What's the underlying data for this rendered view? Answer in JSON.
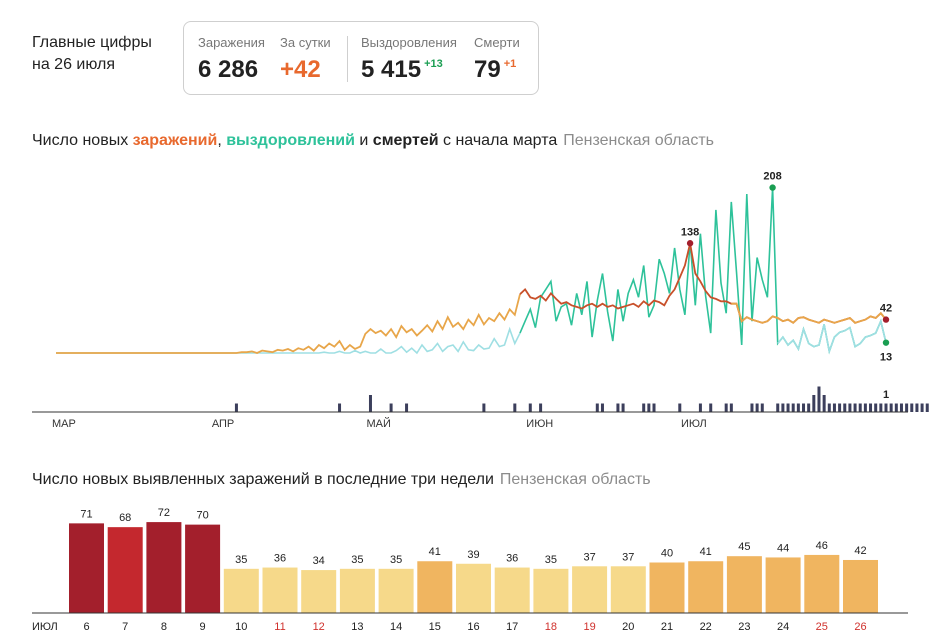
{
  "header": {
    "title_line1": "Главные цифры",
    "title_line2": "на 26 июля"
  },
  "stats": {
    "infections_label": "Заражения",
    "infections_value": "6 286",
    "daily_label": "За сутки",
    "daily_value": "+42",
    "recovered_label": "Выздоровления",
    "recovered_value": "5 415",
    "recovered_delta": "+13",
    "deaths_label": "Смерти",
    "deaths_value": "79",
    "deaths_delta": "+1"
  },
  "colors": {
    "infections": "#e8692e",
    "recovered": "#2ec29a",
    "deaths_bar": "#3c3f5c",
    "peak_red": "#a31f2c",
    "bar_red": "#a31f2c",
    "bar_yellow": "#f6d98a",
    "bar_orange": "#f0b560"
  },
  "chart1": {
    "title_prefix": "Число новых ",
    "title_infections": "заражений",
    "title_sep": ", ",
    "title_recoveries": "выздоровлений",
    "title_and": " и ",
    "title_deaths": "смертей",
    "title_suffix": " с начала марта",
    "region": "Пензенская область",
    "month_labels": [
      "МАР",
      "АПР",
      "МАЙ",
      "ИЮН",
      "ИЮЛ"
    ],
    "annotations": {
      "infections_peak": "138",
      "recovered_peak": "208",
      "infections_last": "42",
      "recovered_last": "13",
      "deaths_last": "1"
    }
  },
  "chart_data": [
    {
      "type": "line",
      "title": "Число новых заражений, выздоровлений и смертей с начала марта",
      "subtitle": "Пензенская область",
      "x_start": "2020-03-01",
      "x_end": "2020-07-26",
      "ylim": [
        0,
        210
      ],
      "series": [
        {
          "name": "Заражения",
          "values": [
            0,
            0,
            0,
            0,
            0,
            0,
            0,
            0,
            0,
            0,
            0,
            0,
            0,
            0,
            0,
            0,
            0,
            0,
            0,
            0,
            0,
            0,
            0,
            0,
            0,
            0,
            0,
            0,
            0,
            0,
            0,
            0,
            0,
            0,
            0,
            0,
            1,
            1,
            2,
            0,
            3,
            2,
            1,
            4,
            3,
            5,
            2,
            6,
            4,
            8,
            3,
            10,
            6,
            12,
            8,
            15,
            4,
            10,
            5,
            8,
            24,
            30,
            25,
            28,
            22,
            30,
            20,
            34,
            26,
            30,
            22,
            28,
            35,
            27,
            40,
            30,
            45,
            33,
            38,
            30,
            42,
            35,
            48,
            36,
            44,
            40,
            50,
            42,
            55,
            48,
            74,
            80,
            70,
            68,
            72,
            66,
            75,
            68,
            62,
            64,
            60,
            58,
            56,
            60,
            62,
            58,
            62,
            58,
            60,
            56,
            58,
            60,
            62,
            58,
            65,
            60,
            66,
            64,
            60,
            72,
            80,
            95,
            110,
            138,
            100,
            90,
            78,
            70,
            68,
            65,
            65,
            62,
            62,
            40,
            45,
            42,
            40,
            38,
            40,
            46,
            44,
            40,
            42,
            38,
            44,
            45,
            42,
            40,
            38,
            42,
            40,
            38,
            40,
            42,
            44,
            38,
            40,
            42,
            46,
            44,
            50,
            42
          ]
        },
        {
          "name": "Выздоровления",
          "values": [
            0,
            0,
            0,
            0,
            0,
            0,
            0,
            0,
            0,
            0,
            0,
            0,
            0,
            0,
            0,
            0,
            0,
            0,
            0,
            0,
            0,
            0,
            0,
            0,
            0,
            0,
            0,
            0,
            0,
            0,
            0,
            0,
            0,
            0,
            0,
            0,
            0,
            0,
            0,
            0,
            0,
            0,
            0,
            0,
            0,
            0,
            0,
            0,
            0,
            0,
            0,
            0,
            1,
            0,
            0,
            2,
            0,
            0,
            3,
            0,
            2,
            0,
            0,
            5,
            0,
            0,
            3,
            8,
            1,
            6,
            0,
            10,
            2,
            4,
            12,
            2,
            8,
            10,
            2,
            14,
            4,
            3,
            10,
            5,
            6,
            18,
            8,
            10,
            30,
            12,
            25,
            40,
            55,
            32,
            70,
            80,
            90,
            40,
            58,
            62,
            35,
            75,
            48,
            90,
            20,
            66,
            100,
            52,
            15,
            80,
            40,
            75,
            92,
            70,
            110,
            45,
            60,
            118,
            100,
            75,
            132,
            80,
            48,
            140,
            60,
            150,
            72,
            25,
            180,
            88,
            50,
            190,
            102,
            10,
            200,
            40,
            120,
            92,
            70,
            208,
            12,
            20,
            10,
            16,
            5,
            30,
            12,
            8,
            10,
            36,
            2,
            20,
            26,
            28,
            32,
            8,
            12,
            20,
            22,
            25,
            40,
            13
          ]
        },
        {
          "name": "Смерти",
          "values": [
            0,
            0,
            0,
            0,
            0,
            0,
            0,
            0,
            0,
            0,
            0,
            0,
            0,
            0,
            0,
            0,
            0,
            0,
            0,
            0,
            0,
            0,
            0,
            0,
            0,
            0,
            0,
            0,
            0,
            0,
            0,
            0,
            0,
            0,
            0,
            1,
            0,
            0,
            0,
            0,
            0,
            0,
            0,
            0,
            0,
            0,
            0,
            0,
            0,
            0,
            0,
            0,
            0,
            0,
            0,
            1,
            0,
            0,
            0,
            0,
            0,
            2,
            0,
            0,
            0,
            1,
            0,
            0,
            1,
            0,
            0,
            0,
            0,
            0,
            0,
            0,
            0,
            0,
            0,
            0,
            0,
            0,
            0,
            1,
            0,
            0,
            0,
            0,
            0,
            1,
            0,
            0,
            1,
            0,
            1,
            0,
            0,
            0,
            0,
            0,
            0,
            0,
            0,
            0,
            0,
            1,
            1,
            0,
            0,
            1,
            1,
            0,
            0,
            0,
            1,
            1,
            1,
            0,
            0,
            0,
            0,
            1,
            0,
            0,
            0,
            1,
            0,
            1,
            0,
            0,
            1,
            1,
            0,
            0,
            0,
            1,
            1,
            1,
            0,
            0,
            1,
            1,
            1,
            1,
            1,
            1,
            1,
            2,
            3,
            2,
            1,
            1,
            1,
            1,
            1,
            1,
            1,
            1,
            1,
            1,
            1,
            1,
            1,
            1,
            1,
            1,
            1,
            1,
            1,
            1
          ]
        }
      ]
    },
    {
      "type": "bar",
      "title": "Число новых выявленных заражений в последние три недели",
      "subtitle": "Пензенская область",
      "xlabel": "ИЮЛ",
      "categories": [
        "6",
        "7",
        "8",
        "9",
        "10",
        "11",
        "12",
        "13",
        "14",
        "15",
        "16",
        "17",
        "18",
        "19",
        "20",
        "21",
        "22",
        "23",
        "24",
        "25",
        "26"
      ],
      "values": [
        71,
        68,
        72,
        70,
        35,
        36,
        34,
        35,
        35,
        41,
        39,
        36,
        35,
        37,
        37,
        40,
        41,
        45,
        44,
        46,
        42
      ],
      "weekend_categories": [
        "11",
        "12",
        "18",
        "19",
        "25",
        "26"
      ],
      "ylim": [
        0,
        80
      ]
    }
  ],
  "chart2": {
    "title": "Число новых выявленных заражений в последние три недели",
    "region": "Пензенская область",
    "month_label": "ИЮЛ"
  }
}
